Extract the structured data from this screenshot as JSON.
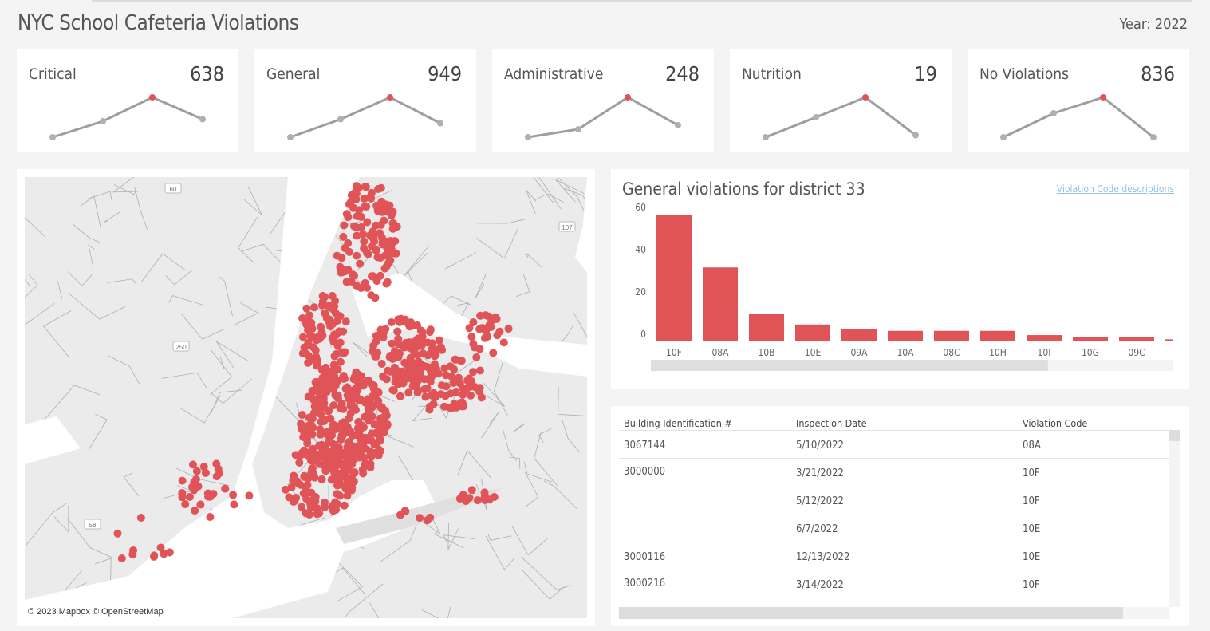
{
  "header": {
    "title": "NYC School Cafeteria Violations",
    "year_label": "Year: 2022"
  },
  "kpis": [
    {
      "label": "Critical",
      "value": "638",
      "trend": [
        0.0,
        0.4,
        1.0,
        0.45
      ],
      "highlight_index": 2
    },
    {
      "label": "General",
      "value": "949",
      "trend": [
        0.0,
        0.45,
        1.0,
        0.35
      ],
      "highlight_index": 2
    },
    {
      "label": "Administrative",
      "value": "248",
      "trend": [
        0.0,
        0.2,
        1.0,
        0.3
      ],
      "highlight_index": 2
    },
    {
      "label": "Nutrition",
      "value": "19",
      "trend": [
        0.0,
        0.5,
        1.0,
        0.05
      ],
      "highlight_index": 2
    },
    {
      "label": "No Violations",
      "value": "836",
      "trend": [
        0.0,
        0.6,
        1.0,
        0.0
      ],
      "highlight_index": 2
    }
  ],
  "colors": {
    "accent": "#e05458",
    "trend_line": "#9e9e9e",
    "trend_point": "#b8aea9",
    "background": "#f4f4f4"
  },
  "map": {
    "attribution": "© 2023 Mapbox  © OpenStreetMap",
    "road_labels": [
      "60",
      "107",
      "250",
      "58"
    ]
  },
  "chart_data": {
    "type": "bar",
    "title": "General violations for district 33",
    "link_label": "Violation Code descriptions",
    "categories": [
      "10F",
      "08A",
      "10B",
      "10E",
      "09A",
      "10A",
      "08C",
      "10H",
      "10I",
      "10G",
      "09C",
      ""
    ],
    "values": [
      60,
      35,
      13,
      8,
      6,
      5,
      5,
      5,
      3,
      2,
      2,
      1
    ],
    "yticks": [
      0,
      20,
      40,
      60
    ],
    "ylim": [
      0,
      62
    ],
    "grid": false,
    "color": "#e05458",
    "scroll_fraction": 0.76
  },
  "table": {
    "columns": [
      "Building Identification #",
      "Inspection Date",
      "Violation Code"
    ],
    "rows": [
      {
        "bin": "3067144",
        "date": "5/10/2022",
        "code": "08A"
      },
      {
        "bin": "3000000",
        "date": "3/21/2022",
        "code": "10F"
      },
      {
        "bin": "",
        "date": "5/12/2022",
        "code": "10F"
      },
      {
        "bin": "",
        "date": "6/7/2022",
        "code": "10E"
      },
      {
        "bin": "3000116",
        "date": "12/13/2022",
        "code": "10E"
      },
      {
        "bin": "3000216",
        "date": "3/14/2022",
        "code": "10F"
      }
    ]
  }
}
